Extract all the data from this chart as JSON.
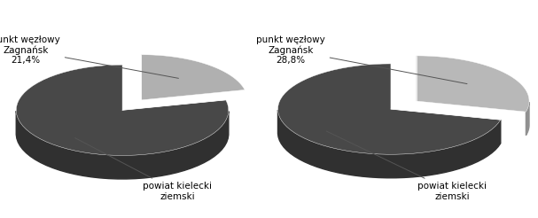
{
  "chart1": {
    "values": [
      21.4,
      78.6
    ],
    "colors_top": [
      "#b0b0b0",
      "#484848"
    ],
    "colors_side": [
      "#909090",
      "#303030"
    ],
    "label0": "punkt węzłowy\nZagnańsk",
    "label1": "powiat kielecki\nziemski",
    "pct": "21,4%",
    "startangle": 90,
    "explode": 0.06
  },
  "chart2": {
    "values": [
      28.8,
      71.2
    ],
    "colors_top": [
      "#b8b8b8",
      "#484848"
    ],
    "colors_side": [
      "#909090",
      "#303030"
    ],
    "label0": "punkt węzłowy\nZagnańsk",
    "label1": "powiat kielecki\nziemski",
    "pct": "28,8%",
    "startangle": 90,
    "explode": 0.06
  },
  "bg_color": "#ffffff",
  "fontsize": 7.5,
  "depth": 0.12,
  "yscale": 0.55
}
